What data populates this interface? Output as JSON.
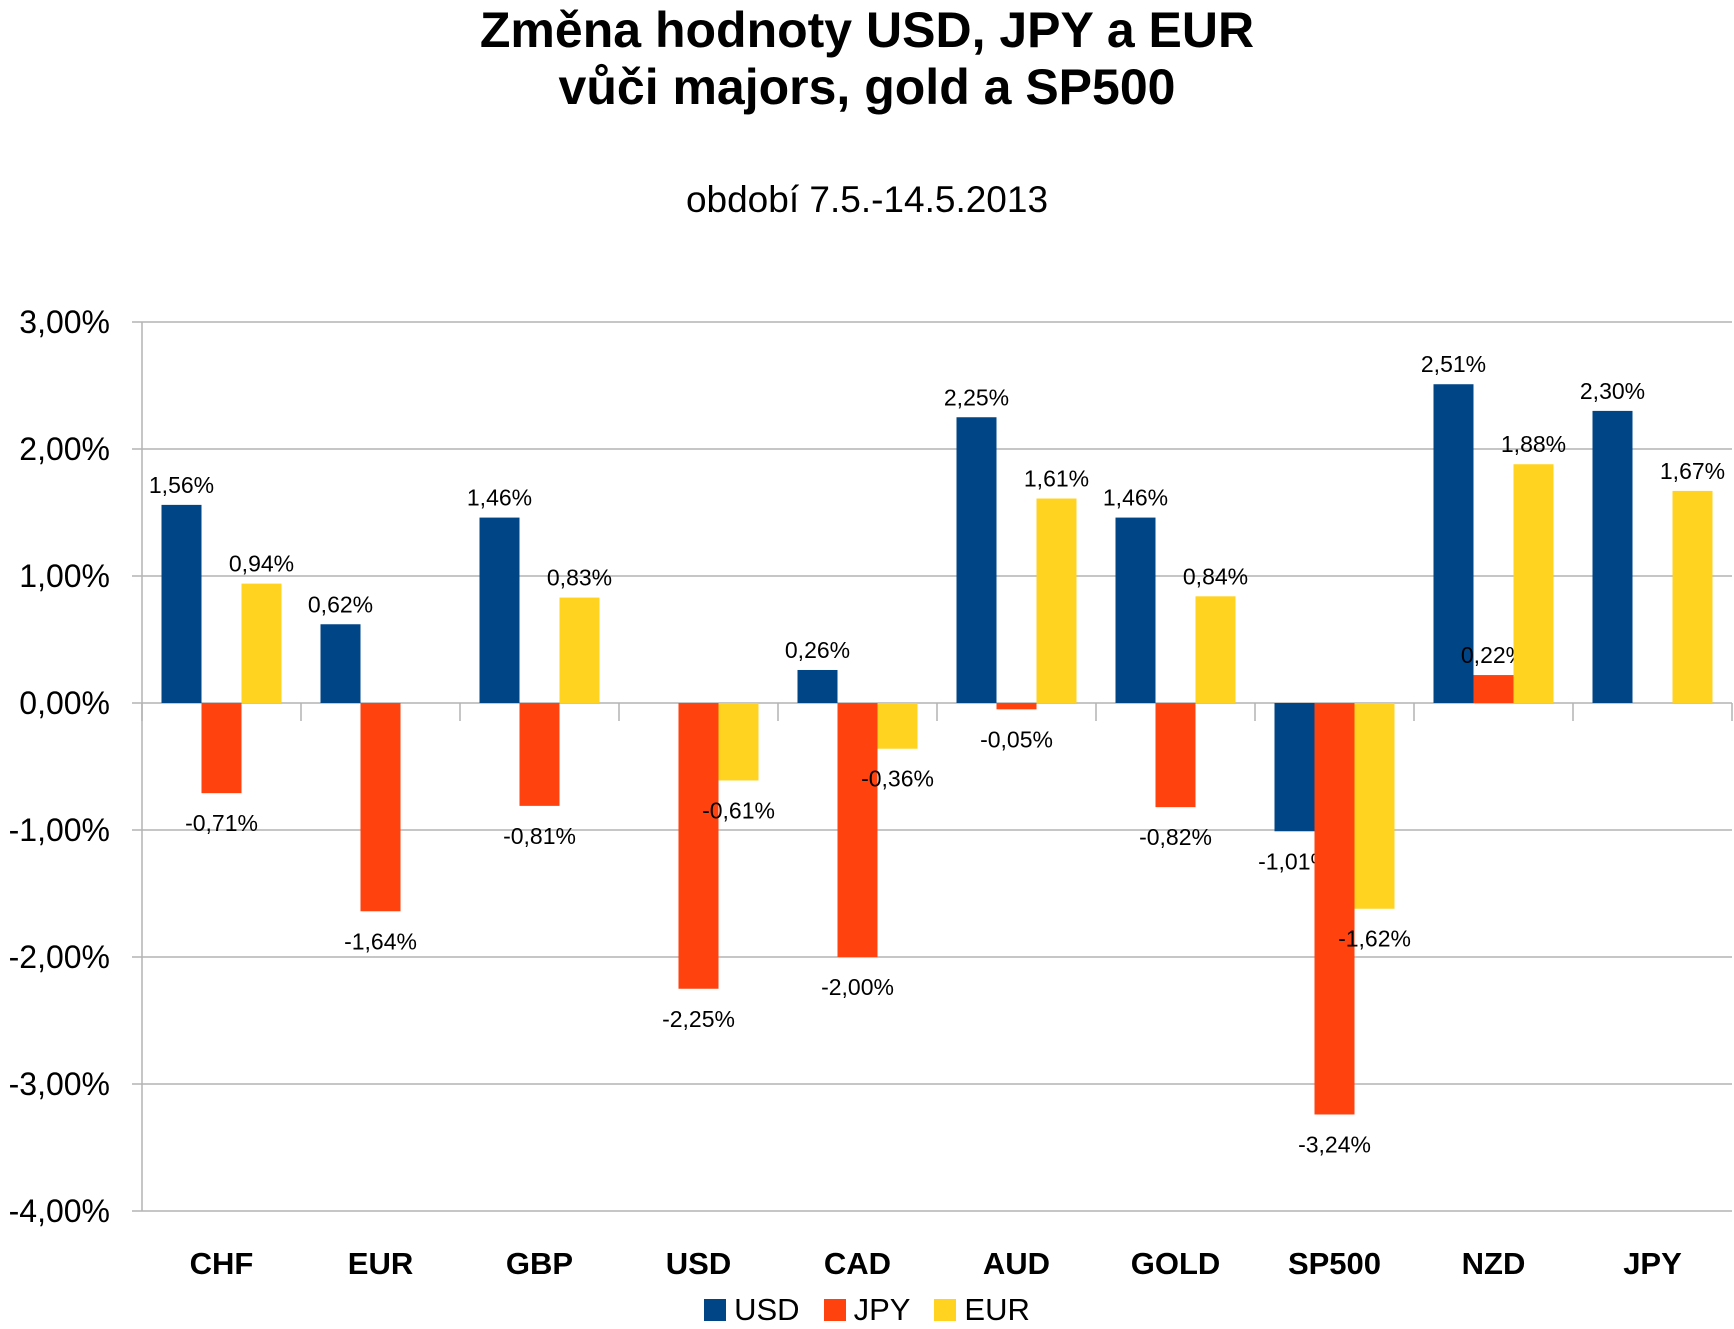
{
  "chart_data": {
    "type": "bar",
    "title_line1": "Změna hodnoty USD, JPY a EUR",
    "title_line2": "vůči majors, gold a SP500",
    "subtitle": "období 7.5.-14.5.2013",
    "categories": [
      "CHF",
      "EUR",
      "GBP",
      "USD",
      "CAD",
      "AUD",
      "GOLD",
      "SP500",
      "NZD",
      "JPY"
    ],
    "series": [
      {
        "name": "USD",
        "color": "#004586",
        "values": [
          1.56,
          0.62,
          1.46,
          null,
          0.26,
          2.25,
          1.46,
          -1.01,
          2.51,
          2.3
        ],
        "labels": [
          "1,56%",
          "0,62%",
          "1,46%",
          "",
          "0,26%",
          "2,25%",
          "1,46%",
          "-1,01%",
          "2,51%",
          "2,30%"
        ]
      },
      {
        "name": "JPY",
        "color": "#ff420e",
        "values": [
          -0.71,
          -1.64,
          -0.81,
          -2.25,
          -2.0,
          -0.05,
          -0.82,
          -3.24,
          0.22,
          null
        ],
        "labels": [
          "-0,71%",
          "-1,64%",
          "-0,81%",
          "-2,25%",
          "-2,00%",
          "-0,05%",
          "-0,82%",
          "-3,24%",
          "0,22%",
          ""
        ]
      },
      {
        "name": "EUR",
        "color": "#ffd320",
        "values": [
          0.94,
          null,
          0.83,
          -0.61,
          -0.36,
          1.61,
          0.84,
          -1.62,
          1.88,
          1.67
        ],
        "labels": [
          "0,94%",
          "",
          "0,83%",
          "-0,61%",
          "-0,36%",
          "1,61%",
          "0,84%",
          "-1,62%",
          "1,88%",
          "1,67%"
        ]
      }
    ],
    "y_ticks": [
      3,
      2,
      1,
      0,
      -1,
      -2,
      -3,
      -4
    ],
    "y_tick_labels": [
      "3,00%",
      "2,00%",
      "1,00%",
      "0,00%",
      "-1,00%",
      "-2,00%",
      "-3,00%",
      "-4,00%"
    ],
    "ylim": [
      -4,
      3
    ],
    "grid": true,
    "legend_position": "bottom"
  }
}
